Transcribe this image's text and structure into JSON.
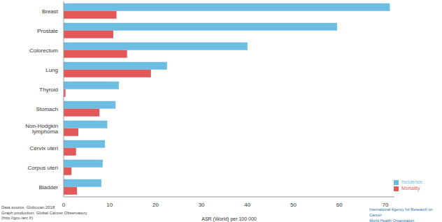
{
  "chart_data": {
    "type": "bar",
    "orientation": "horizontal",
    "categories": [
      "Breast",
      "Prostate",
      "Colorectum",
      "Lung",
      "Thyroid",
      "Stomach",
      "Non-Hodgkin lymphoma",
      "Cervix uteri",
      "Corpus uteri",
      "Bladder"
    ],
    "series": [
      {
        "name": "Incidence",
        "color": "#6bbde3",
        "values": [
          71,
          59.5,
          40,
          22.5,
          12,
          11.3,
          9.5,
          9,
          8.5,
          8.2
        ]
      },
      {
        "name": "Mortality",
        "color": "#e05a5a",
        "values": [
          11.5,
          10.8,
          13.8,
          19,
          0.4,
          7.8,
          3.2,
          2.7,
          1.7,
          2.9
        ]
      }
    ],
    "x_label": "ASR (World) per 100 000",
    "xlim": [
      0,
      72
    ],
    "xticks": [
      0,
      10,
      20,
      30,
      40,
      50,
      60,
      70
    ],
    "grid": false,
    "legend": "lower right",
    "source": [
      "Data source: Globocan 2018",
      "Graph production: Global Cancer Observatory",
      "(http://gco.iarc.fr)"
    ],
    "logo_text": [
      "International Agency for Research on Cancer",
      "World Health Organization"
    ]
  }
}
